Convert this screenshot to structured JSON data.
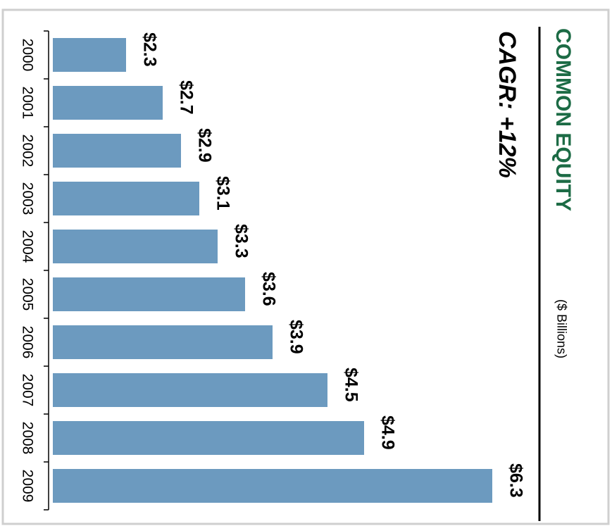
{
  "chart_data": {
    "type": "bar",
    "orientation": "rotated",
    "title": "COMMON EQUITY",
    "subtitle": "($ Billions)",
    "annotation": "CAGR: +12%",
    "categories": [
      "2000",
      "2001",
      "2002",
      "2003",
      "2004",
      "2005",
      "2006",
      "2007",
      "2008",
      "2009"
    ],
    "values": [
      2.3,
      2.7,
      2.9,
      3.1,
      3.3,
      3.6,
      3.9,
      4.5,
      4.9,
      6.3
    ],
    "value_labels": [
      "$2.3",
      "$2.7",
      "$2.9",
      "$3.1",
      "$3.3",
      "$3.6",
      "$3.9",
      "$4.5",
      "$4.9",
      "$6.3"
    ],
    "color": "#6c9abf",
    "title_color": "#1c6b45",
    "ylim": [
      1.5,
      6.5
    ]
  }
}
